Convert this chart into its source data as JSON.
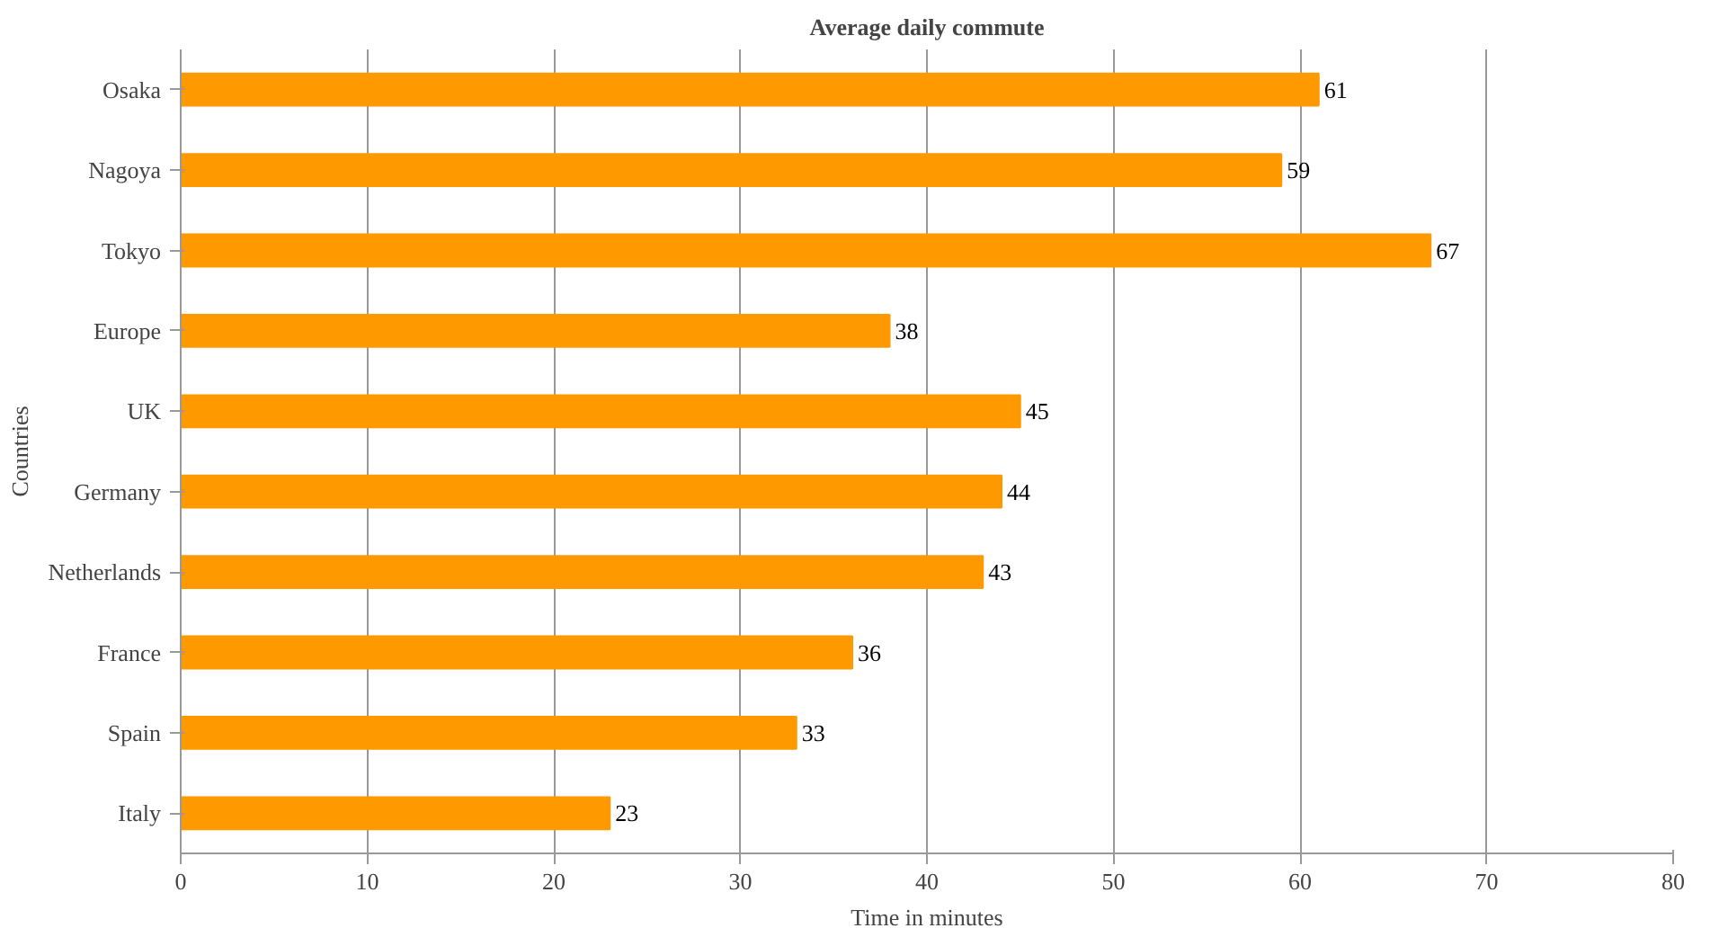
{
  "chart_data": {
    "type": "bar",
    "orientation": "horizontal",
    "title": "Average daily commute",
    "xlabel": "Time in minutes",
    "ylabel": "Countries",
    "categories": [
      "Osaka",
      "Nagoya",
      "Tokyo",
      "Europe",
      "UK",
      "Germany",
      "Netherlands",
      "France",
      "Spain",
      "Italy"
    ],
    "values": [
      61,
      59,
      67,
      38,
      45,
      44,
      43,
      36,
      33,
      23
    ],
    "color": "#ff9900",
    "xlim": [
      0,
      80
    ],
    "xticks": [
      0,
      10,
      20,
      30,
      40,
      50,
      60,
      70,
      80
    ],
    "grid": "x",
    "data_labels": true
  }
}
